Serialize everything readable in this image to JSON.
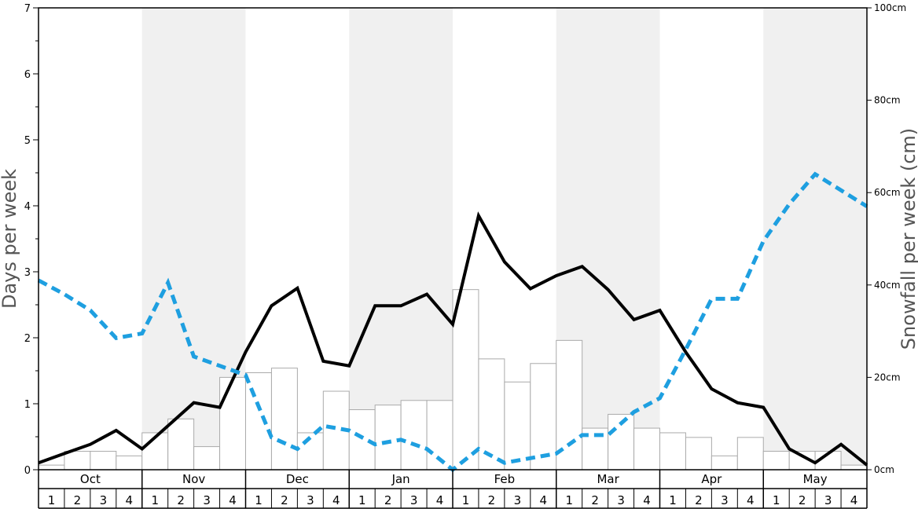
{
  "chart_data": {
    "type": "bar",
    "title": "",
    "ylabel": "Days per week",
    "y2label": "Snowfall per week (cm)",
    "ylim": [
      0,
      7
    ],
    "y2lim": [
      0,
      100
    ],
    "y_ticks": [
      "0",
      "1",
      "2",
      "3",
      "4",
      "5",
      "6",
      "7"
    ],
    "y2_ticks": [
      "0cm",
      "20cm",
      "40cm",
      "60cm",
      "80cm",
      "100cm"
    ],
    "months": [
      "Oct",
      "Nov",
      "Dec",
      "Jan",
      "Feb",
      "Mar",
      "Apr",
      "May"
    ],
    "week_labels": [
      "1",
      "2",
      "3",
      "4"
    ],
    "shaded_months": [
      "Nov",
      "Jan",
      "Mar",
      "May"
    ],
    "colors": {
      "bar_fill": "#ffffff",
      "bar_stroke": "#aaaaaa",
      "line_black": "#000000",
      "line_blue": "#1e9fe0",
      "shade": "#f0f0f0"
    },
    "series": [
      {
        "type": "bar",
        "axis": "right",
        "values": [
          1,
          4,
          4,
          3,
          8,
          11,
          5,
          20,
          21,
          22,
          8,
          17,
          13,
          14,
          15,
          15,
          39,
          24,
          19,
          23,
          28,
          9,
          12,
          9,
          8,
          7,
          3,
          7,
          4,
          4,
          4,
          1
        ]
      },
      {
        "type": "line",
        "axis": "right",
        "style": "solid",
        "values": [
          1.5,
          3.5,
          5.5,
          8.5,
          4.5,
          9.5,
          14.5,
          13.5,
          25.5,
          35.5,
          39.3,
          23.5,
          22.5,
          35.5,
          35.5,
          38.0,
          31.5,
          55.0,
          45.0,
          39.2,
          42.0,
          44.0,
          39.0,
          32.5,
          34.5,
          25.5,
          17.5,
          14.5,
          13.5,
          4.5,
          1.5,
          5.5,
          1.0
        ]
      },
      {
        "type": "line",
        "axis": "right",
        "style": "dashed",
        "values": [
          41.0,
          38.0,
          34.5,
          28.5,
          29.5,
          40.5,
          24.5,
          22.5,
          20.5,
          7.0,
          4.5,
          9.5,
          8.5,
          5.5,
          6.5,
          4.5,
          0.0,
          4.5,
          1.5,
          2.5,
          3.5,
          7.5,
          7.5,
          12.5,
          15.5,
          26.0,
          37.0,
          37.0,
          49.5,
          57.5,
          64.0,
          60.5,
          57.0
        ]
      }
    ]
  }
}
